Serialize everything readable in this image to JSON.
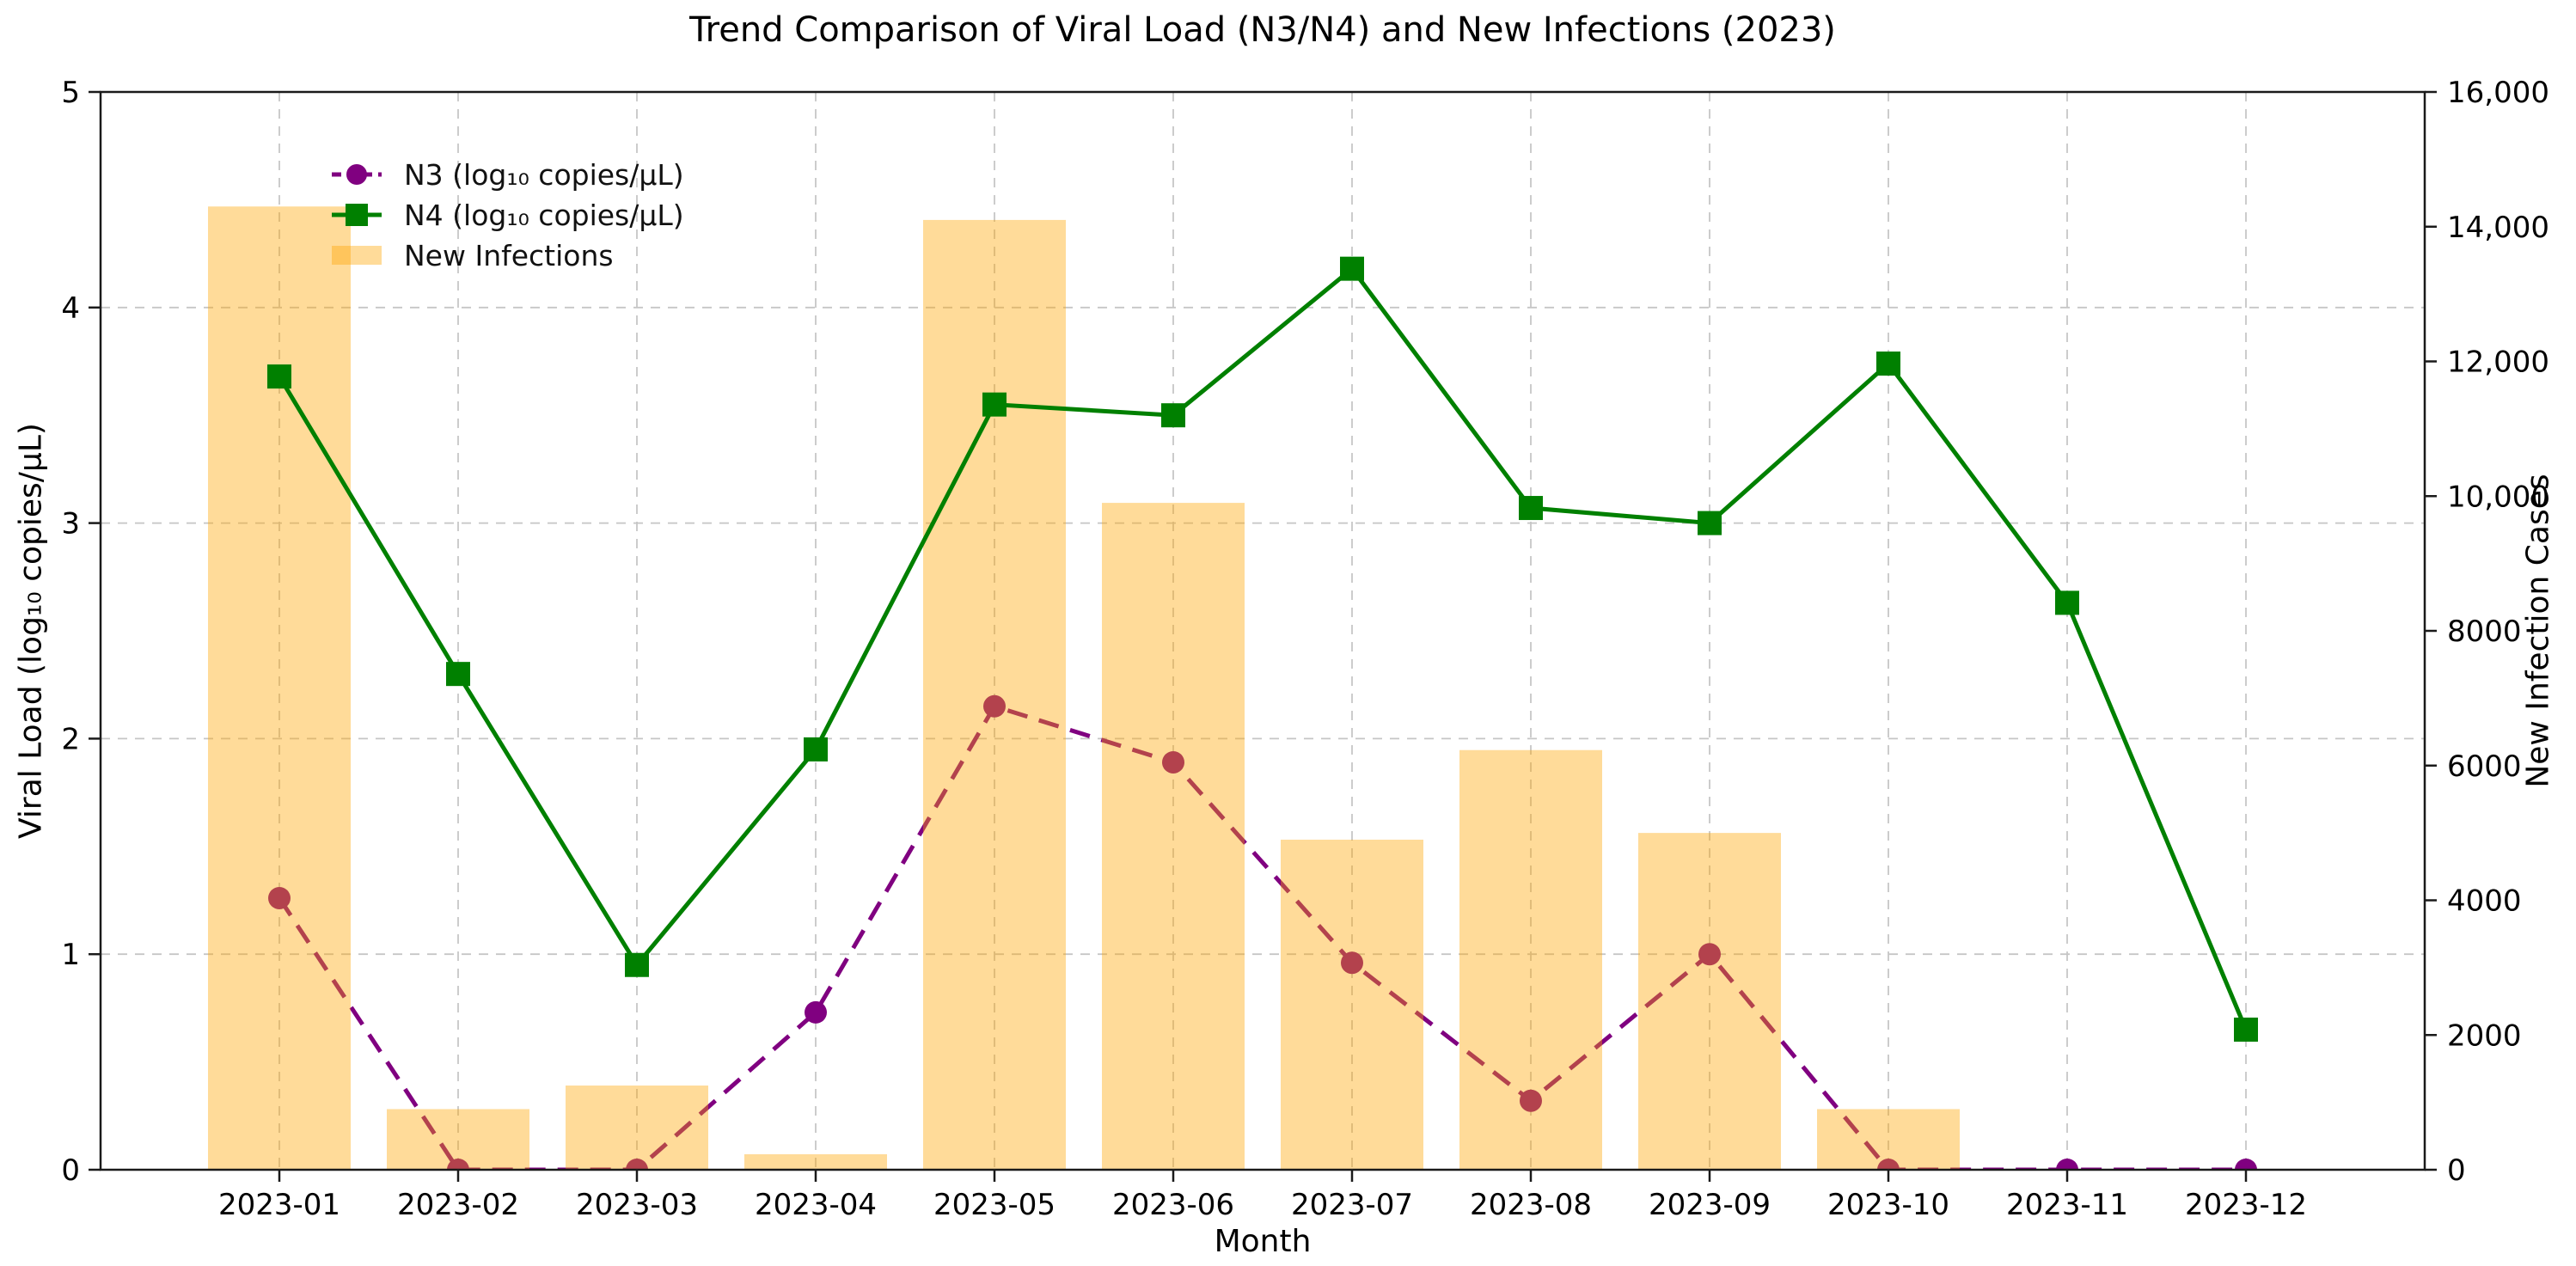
{
  "chart_data": {
    "type": "combo-bar-line",
    "title": "Trend Comparison of Viral Load (N3/N4) and New Infections (2023)",
    "xlabel": "Month",
    "ylabel_left": "Viral Load (log₁₀ copies/μL)",
    "ylabel_right": "New Infection Cases",
    "categories": [
      "2023-01",
      "2023-02",
      "2023-03",
      "2023-04",
      "2023-05",
      "2023-06",
      "2023-07",
      "2023-08",
      "2023-09",
      "2023-10",
      "2023-11",
      "2023-12"
    ],
    "axes": {
      "left": {
        "min": 0,
        "max": 5,
        "ticks": [
          0,
          1,
          2,
          3,
          4,
          5
        ],
        "tick_labels": [
          "0",
          "1",
          "2",
          "3",
          "4",
          "5"
        ]
      },
      "right": {
        "min": 0,
        "max": 16000,
        "ticks": [
          0,
          2000,
          4000,
          6000,
          8000,
          10000,
          12000,
          14000,
          16000
        ],
        "tick_labels": [
          "0",
          "2000",
          "4000",
          "6000",
          "8000",
          "10,000",
          "12,000",
          "14,000",
          "16,000"
        ]
      }
    },
    "grid": {
      "show": true,
      "color": "#c6c6c6",
      "style": "dashed"
    },
    "legend_position": "upper-left",
    "series": [
      {
        "name": "N3 (log₁₀ copies/μL)",
        "type": "line",
        "line_style": "dashed",
        "marker": "circle",
        "color": "#800080",
        "axis": "left",
        "values": [
          1.26,
          0.0,
          0.0,
          0.73,
          2.15,
          1.89,
          0.96,
          0.32,
          1.0,
          0.0,
          0.0,
          0.0
        ]
      },
      {
        "name": "N4 (log₁₀ copies/μL)",
        "type": "line",
        "line_style": "solid",
        "marker": "square",
        "color": "#008000",
        "axis": "left",
        "values": [
          3.68,
          2.3,
          0.95,
          1.95,
          3.55,
          3.5,
          4.18,
          3.07,
          3.0,
          3.74,
          2.63,
          0.65
        ]
      },
      {
        "name": "New Infections",
        "type": "bar",
        "color": "#FFA500",
        "opacity": 0.4,
        "axis": "right",
        "values": [
          14300,
          900,
          1250,
          230,
          14100,
          9900,
          4900,
          6230,
          5000,
          900,
          0,
          0
        ]
      }
    ]
  }
}
